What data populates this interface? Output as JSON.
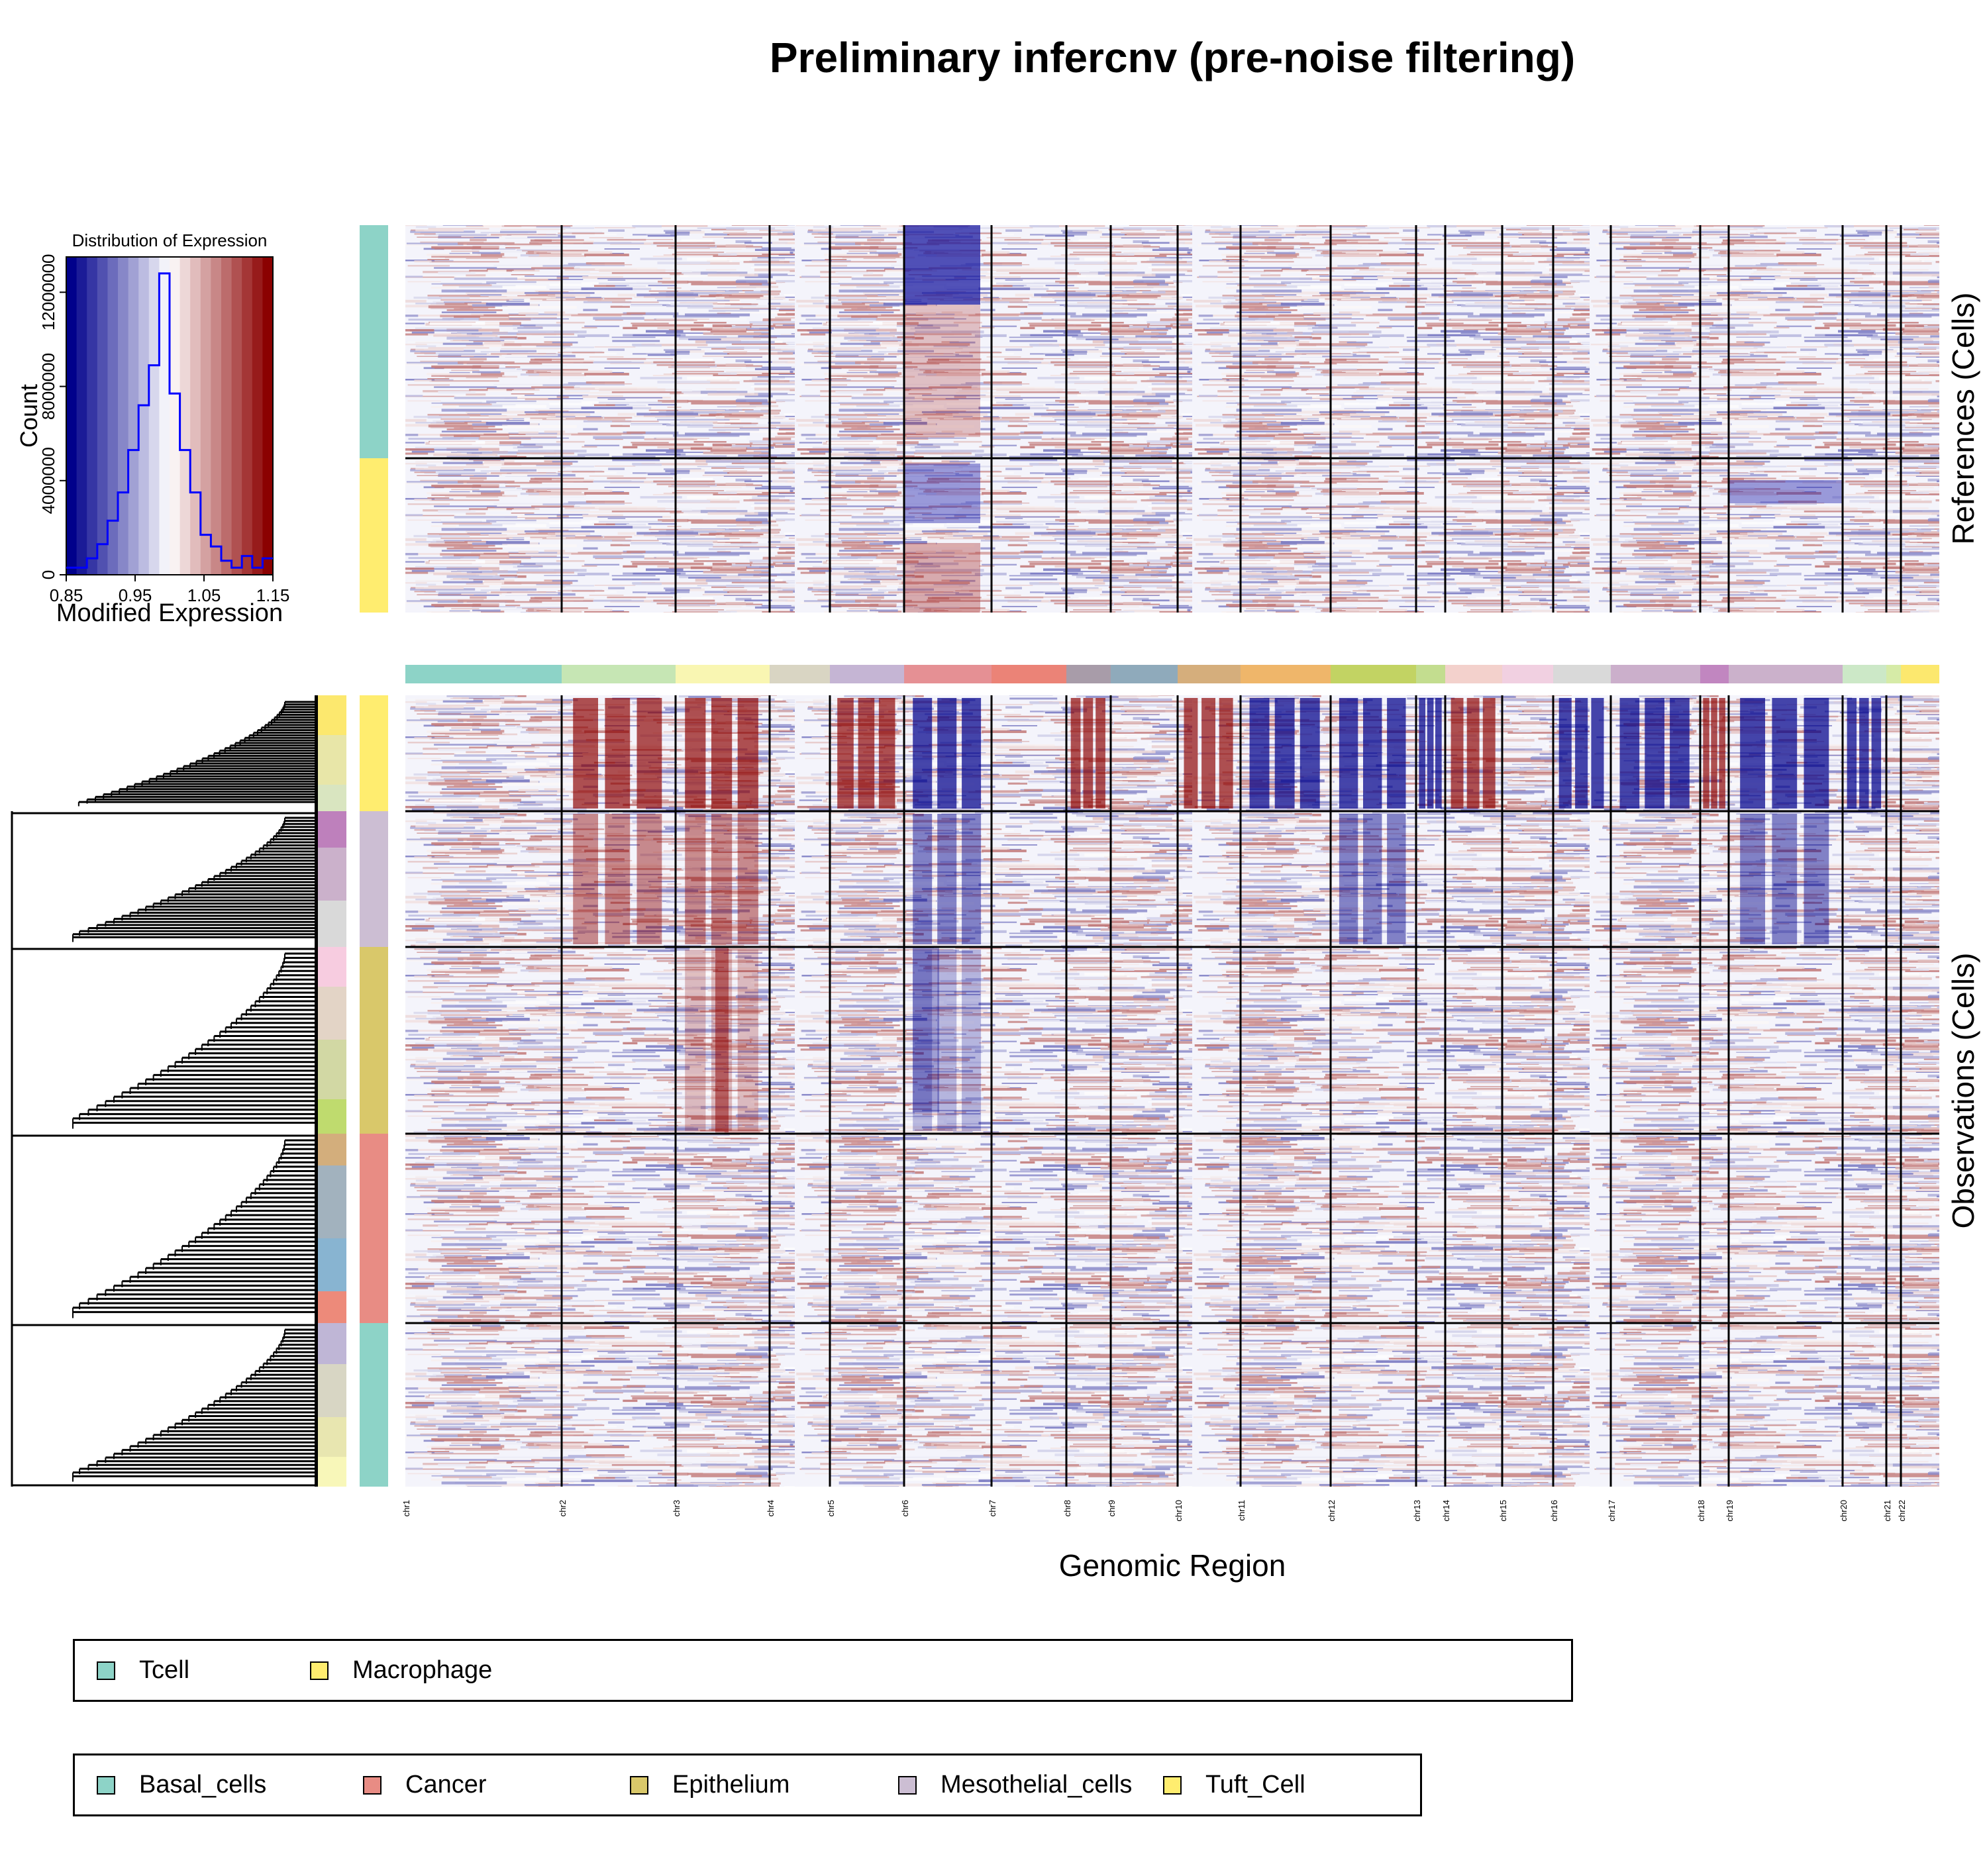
{
  "title": "Preliminary infercnv (pre-noise filtering)",
  "chart_data": [
    {
      "type": "heatmap",
      "title": "Preliminary infercnv (pre-noise filtering)",
      "xlabel": "Genomic Region",
      "reference_label": "References (Cells)",
      "observation_label": "Observations (Cells)",
      "color_scale": {
        "low": "#00008B",
        "mid": "#FFFFFF",
        "high": "#8B0000",
        "range": [
          0.85,
          1.15
        ]
      },
      "chromosomes": [
        "chr1",
        "chr2",
        "chr3",
        "chr4",
        "chr5",
        "chr6",
        "chr7",
        "chr8",
        "chr9",
        "chr10",
        "chr11",
        "chr12",
        "chr13",
        "chr14",
        "chr15",
        "chr16",
        "chr17",
        "chr18",
        "chr19",
        "chr20",
        "chr21",
        "chr22"
      ],
      "chromosome_colors": [
        "#8DD3C7",
        "#C6E6B4",
        "#F9F6B2",
        "#D9D5C3",
        "#C5B5D4",
        "#E59094",
        "#EB8377",
        "#A89CA9",
        "#8FAABB",
        "#D5AE7C",
        "#EFB66A",
        "#C2D363",
        "#C3DD8F",
        "#F3D1CC",
        "#F1D0E1",
        "#D9D9D9",
        "#CBAFCB",
        "#C186C0",
        "#CBB1CB",
        "#CCE8C7",
        "#D6EBA7",
        "#FCE86E"
      ],
      "references": [
        {
          "group": "Tcell",
          "color": "#8DD3C7"
        },
        {
          "group": "Macrophage",
          "color": "#FFED6F"
        }
      ],
      "observations": [
        {
          "group": "Tuft_Cell",
          "color": "#FFED6F"
        },
        {
          "group": "Mesothelial_cells",
          "color": "#CCBED3"
        },
        {
          "group": "Epithelium",
          "color": "#D9C86A"
        },
        {
          "group": "Cancer",
          "color": "#E88C84"
        },
        {
          "group": "Basal_cells",
          "color": "#8DD3C7"
        }
      ],
      "observation_patterns": [
        {
          "group": "Tuft_Cell",
          "gains": [
            "chr2",
            "chr3",
            "chr5",
            "chr8",
            "chr10",
            "chr14",
            "chr18"
          ],
          "losses": [
            "chr6",
            "chr11",
            "chr12",
            "chr13",
            "chr16",
            "chr17",
            "chr19",
            "chr20"
          ]
        },
        {
          "group": "Mesothelial_cells",
          "gains": [
            "chr2",
            "chr3"
          ],
          "losses": [
            "chr6",
            "chr12",
            "chr19"
          ]
        },
        {
          "group": "Epithelium",
          "gains": [
            "chr3"
          ],
          "losses": [
            "chr6"
          ]
        },
        {
          "group": "Cancer",
          "gains": [],
          "losses": []
        },
        {
          "group": "Basal_cells",
          "gains": [],
          "losses": []
        }
      ]
    },
    {
      "type": "bar",
      "title": "Distribution of Expression",
      "xlabel": "Modified Expression",
      "ylabel": "Count",
      "xlim": [
        0.85,
        1.15
      ],
      "ylim": [
        0,
        13500000
      ],
      "x_ticks": [
        "0.85",
        "0.95",
        "1.05",
        "1.15"
      ],
      "y_ticks": [
        "0",
        "4000000",
        "8000000",
        "12000000"
      ],
      "bin_edges": [
        0.85,
        0.865,
        0.88,
        0.895,
        0.91,
        0.925,
        0.94,
        0.955,
        0.97,
        0.985,
        1.0,
        1.015,
        1.03,
        1.045,
        1.06,
        1.075,
        1.09,
        1.105,
        1.12,
        1.135,
        1.15
      ],
      "counts": [
        300000,
        300000,
        700000,
        1300000,
        2300000,
        3500000,
        5300000,
        7200000,
        8900000,
        12800000,
        7700000,
        5300000,
        3500000,
        1700000,
        1200000,
        600000,
        300000,
        800000,
        300000,
        700000
      ]
    }
  ],
  "reference_legend": [
    {
      "label": "Tcell",
      "color": "#8DD3C7"
    },
    {
      "label": "Macrophage",
      "color": "#FFED6F"
    }
  ],
  "observation_legend": [
    {
      "label": "Basal_cells",
      "color": "#8DD3C7"
    },
    {
      "label": "Cancer",
      "color": "#E88C84"
    },
    {
      "label": "Epithelium",
      "color": "#D9C86A"
    },
    {
      "label": "Mesothelial_cells",
      "color": "#CCBED3"
    },
    {
      "label": "Tuft_Cell",
      "color": "#FFED6F"
    }
  ]
}
